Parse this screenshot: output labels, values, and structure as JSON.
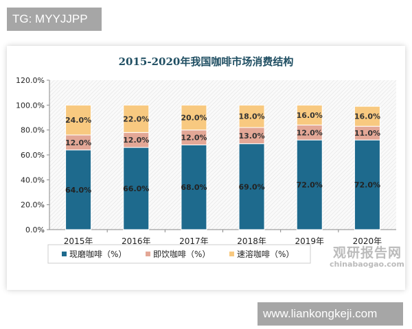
{
  "tag": "TG: MYYJJPP",
  "site": "www.liankongkeji.com",
  "watermark": {
    "cn": "观研报告网",
    "en": "chinabaogao.com"
  },
  "chart_data": {
    "type": "bar",
    "stacked": true,
    "title": "2015-2020年我国咖啡市场消费结构",
    "categories": [
      "2015年",
      "2016年",
      "2017年",
      "2018年",
      "2019年",
      "2020年"
    ],
    "ylim": [
      0,
      120
    ],
    "yticks": [
      "0.0%",
      "20.0%",
      "40.0%",
      "60.0%",
      "80.0%",
      "100.0%",
      "120.0%"
    ],
    "legend": "bottom",
    "series": [
      {
        "name": "现磨咖啡（%）",
        "values": [
          64,
          66,
          68,
          69,
          72,
          72
        ],
        "labels": [
          "64.0%",
          "66.0%",
          "68.0%",
          "69.0%",
          "72.0%",
          "72.0%"
        ],
        "color": "#1e6a8d"
      },
      {
        "name": "即饮咖啡（%）",
        "values": [
          12,
          12,
          12,
          13,
          12,
          11
        ],
        "labels": [
          "12.0%",
          "12.0%",
          "12.0%",
          "13.0%",
          "12.0%",
          "11.0%"
        ],
        "color": "#e3a796"
      },
      {
        "name": "速溶咖啡（%）",
        "values": [
          24,
          22,
          20,
          18,
          16,
          16
        ],
        "labels": [
          "24.0%",
          "22.0%",
          "20.0%",
          "18.0%",
          "16.0%",
          "16.0%"
        ],
        "color": "#f8c980"
      }
    ]
  }
}
